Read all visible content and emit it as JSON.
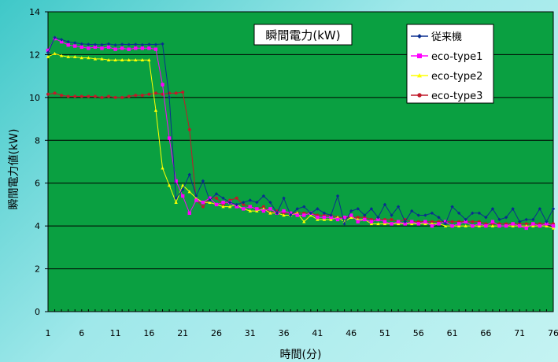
{
  "colors": {
    "plot_bg": "#0aa041",
    "grid": "#000000",
    "series": [
      "#0a2f8f",
      "#ff00ff",
      "#ffff00",
      "#c01a2a"
    ]
  },
  "chart_data": {
    "type": "line",
    "title": "瞬間電力(kW)",
    "xlabel": "時間(分)",
    "ylabel": "瞬間電力値(kW)",
    "ylim": [
      0,
      14
    ],
    "yticks": [
      0,
      2,
      4,
      6,
      8,
      10,
      12,
      14
    ],
    "xlim": [
      1,
      76
    ],
    "xticks": [
      1,
      6,
      11,
      16,
      21,
      26,
      31,
      36,
      41,
      46,
      51,
      56,
      61,
      66,
      71,
      76
    ],
    "grid": "horizontal",
    "legend_position": "top-right",
    "x": [
      1,
      2,
      3,
      4,
      5,
      6,
      7,
      8,
      9,
      10,
      11,
      12,
      13,
      14,
      15,
      16,
      17,
      18,
      19,
      20,
      21,
      22,
      23,
      24,
      25,
      26,
      27,
      28,
      29,
      30,
      31,
      32,
      33,
      34,
      35,
      36,
      37,
      38,
      39,
      40,
      41,
      42,
      43,
      44,
      45,
      46,
      47,
      48,
      49,
      50,
      51,
      52,
      53,
      54,
      55,
      56,
      57,
      58,
      59,
      60,
      61,
      62,
      63,
      64,
      65,
      66,
      67,
      68,
      69,
      70,
      71,
      72,
      73,
      74,
      75,
      76
    ],
    "series": [
      {
        "name": "従来機",
        "marker": "diamond",
        "values": [
          12.1,
          12.8,
          12.7,
          12.6,
          12.55,
          12.5,
          12.48,
          12.47,
          12.46,
          12.5,
          12.45,
          12.48,
          12.47,
          12.48,
          12.46,
          12.48,
          12.47,
          12.5,
          10.0,
          5.3,
          5.7,
          6.4,
          5.4,
          6.1,
          5.2,
          5.5,
          5.3,
          5.1,
          5.0,
          5.1,
          5.2,
          5.1,
          5.4,
          5.1,
          4.6,
          5.3,
          4.5,
          4.8,
          4.9,
          4.6,
          4.8,
          4.6,
          4.5,
          5.4,
          4.1,
          4.7,
          4.8,
          4.5,
          4.8,
          4.4,
          5.0,
          4.5,
          4.9,
          4.2,
          4.7,
          4.5,
          4.5,
          4.6,
          4.4,
          4.1,
          4.9,
          4.6,
          4.3,
          4.6,
          4.6,
          4.4,
          4.8,
          4.3,
          4.4,
          4.8,
          4.2,
          4.3,
          4.3,
          4.8,
          4.2,
          4.8
        ]
      },
      {
        "name": "eco-type1",
        "marker": "square",
        "values": [
          12.2,
          12.75,
          12.6,
          12.45,
          12.4,
          12.35,
          12.3,
          12.35,
          12.3,
          12.35,
          12.25,
          12.3,
          12.25,
          12.3,
          12.3,
          12.3,
          12.25,
          10.6,
          8.1,
          6.1,
          5.4,
          4.6,
          5.2,
          5.1,
          5.3,
          5.0,
          5.1,
          5.1,
          4.9,
          4.8,
          4.9,
          4.8,
          4.7,
          4.8,
          4.6,
          4.7,
          4.6,
          4.5,
          4.5,
          4.6,
          4.4,
          4.4,
          4.4,
          4.3,
          4.4,
          4.5,
          4.2,
          4.3,
          4.2,
          4.3,
          4.2,
          4.1,
          4.2,
          4.1,
          4.2,
          4.1,
          4.2,
          4.0,
          4.1,
          4.2,
          4.0,
          4.1,
          4.2,
          4.0,
          4.1,
          4.0,
          4.2,
          4.0,
          4.0,
          4.1,
          4.0,
          3.9,
          4.1,
          4.0,
          4.1,
          4.0
        ]
      },
      {
        "name": "eco-type2",
        "marker": "triangle",
        "values": [
          11.9,
          12.05,
          11.95,
          11.9,
          11.9,
          11.85,
          11.85,
          11.8,
          11.8,
          11.75,
          11.75,
          11.75,
          11.75,
          11.75,
          11.75,
          11.75,
          9.4,
          6.7,
          5.9,
          5.1,
          5.9,
          5.6,
          5.3,
          5.1,
          5.1,
          5.0,
          4.9,
          4.9,
          5.0,
          4.8,
          4.7,
          4.7,
          4.8,
          4.6,
          4.6,
          4.5,
          4.5,
          4.6,
          4.2,
          4.5,
          4.3,
          4.3,
          4.3,
          4.4,
          4.2,
          4.4,
          4.3,
          4.3,
          4.1,
          4.1,
          4.1,
          4.1,
          4.1,
          4.1,
          4.1,
          4.1,
          4.1,
          4.1,
          4.1,
          4.0,
          4.0,
          4.0,
          4.0,
          4.0,
          4.0,
          4.0,
          4.0,
          4.0,
          4.0,
          4.0,
          4.0,
          4.0,
          4.0,
          4.0,
          4.0,
          3.9
        ]
      },
      {
        "name": "eco-type3",
        "marker": "circle",
        "values": [
          10.15,
          10.2,
          10.1,
          10.05,
          10.05,
          10.05,
          10.05,
          10.05,
          10.0,
          10.05,
          10.0,
          10.0,
          10.05,
          10.1,
          10.1,
          10.15,
          10.2,
          10.15,
          10.2,
          10.2,
          10.25,
          8.5,
          5.2,
          4.9,
          5.3,
          5.3,
          5.0,
          5.2,
          5.3,
          5.0,
          4.9,
          4.8,
          4.9,
          4.6,
          4.7,
          4.6,
          4.6,
          4.6,
          4.6,
          4.6,
          4.5,
          4.5,
          4.5,
          4.4,
          4.4,
          4.4,
          4.4,
          4.4,
          4.3,
          4.3,
          4.3,
          4.3,
          4.2,
          4.3,
          4.2,
          4.2,
          4.2,
          4.2,
          4.2,
          4.2,
          4.2,
          4.2,
          4.2,
          4.2,
          4.2,
          4.1,
          4.1,
          4.1,
          4.1,
          4.1,
          4.1,
          4.1,
          4.1,
          4.1,
          4.1,
          4.1
        ]
      }
    ]
  }
}
